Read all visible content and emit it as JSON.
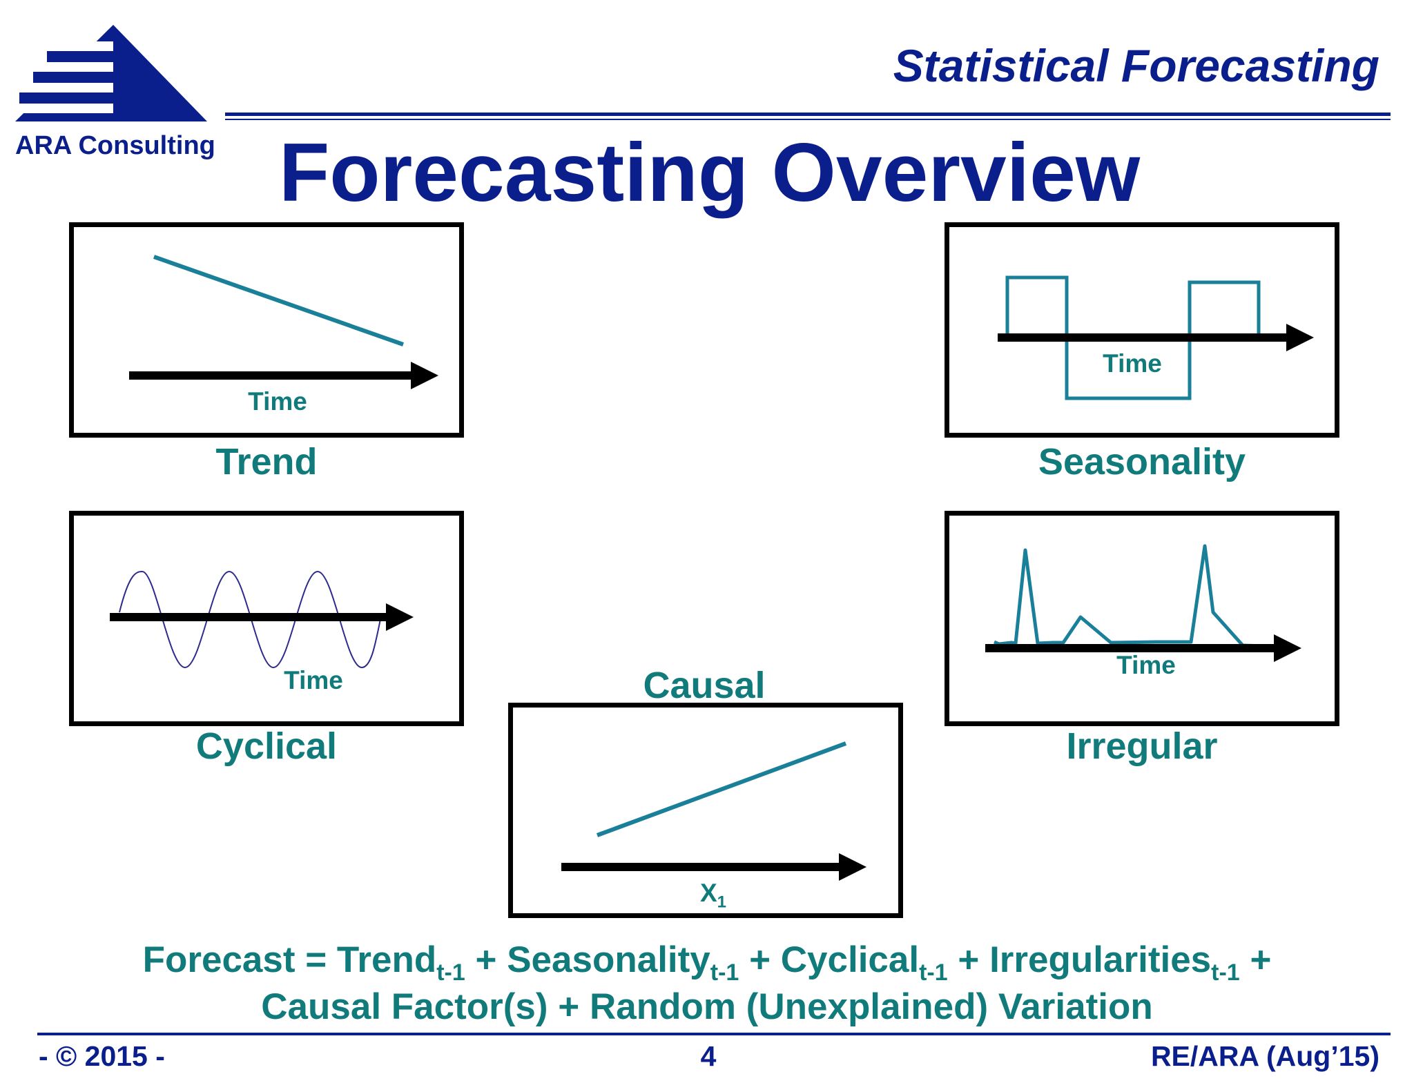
{
  "header": {
    "logo_text": "ARA Consulting",
    "section_title": "Statistical Forecasting",
    "page_title": "Forecasting Overview"
  },
  "components": [
    {
      "id": "trend",
      "caption": "Trend",
      "axis_label": "Time",
      "shape": "downward-line"
    },
    {
      "id": "seasonality",
      "caption": "Seasonality",
      "axis_label": "Time",
      "shape": "square-wave"
    },
    {
      "id": "cyclical",
      "caption": "Cyclical",
      "axis_label": "Time",
      "shape": "sine-wave"
    },
    {
      "id": "irregular",
      "caption": "Irregular",
      "axis_label": "Time",
      "shape": "spikes"
    },
    {
      "id": "causal",
      "caption": "Causal",
      "axis_label_main": "X",
      "axis_label_sub": "1",
      "shape": "upward-line"
    }
  ],
  "formula": {
    "line1": [
      {
        "text": "Forecast = Trend"
      },
      {
        "sub": "t-1"
      },
      {
        "text": " + Seasonality"
      },
      {
        "sub": "t-1"
      },
      {
        "text": " + Cyclical"
      },
      {
        "sub": "t-1"
      },
      {
        "text": " + Irregularities"
      },
      {
        "sub": "t-1"
      },
      {
        "text": " +"
      }
    ],
    "line2": "Causal Factor(s) + Random (Unexplained) Variation"
  },
  "footer": {
    "left": "- © 2015 -",
    "center": "4",
    "right": "RE/ARA (Aug’15)"
  },
  "colors": {
    "navy": "#0b1f8c",
    "teal": "#117b7b",
    "curve": "#1a7f99",
    "wave": "#2d2a8e",
    "axis": "#000000"
  }
}
